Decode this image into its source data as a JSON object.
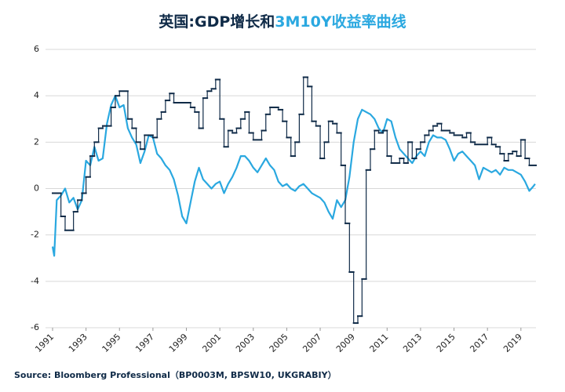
{
  "chart_data": {
    "type": "line",
    "title": [
      "英国:GDP增长和",
      "3M10Y收益率曲线"
    ],
    "source": "Source: Bloomberg Professional（BP0003M, BPSW10, UKGRABIY）",
    "xlim": [
      1991,
      2019.9
    ],
    "xticks": [
      1991,
      1993,
      1995,
      1997,
      1999,
      2001,
      2003,
      2005,
      2007,
      2009,
      2011,
      2013,
      2015,
      2017,
      2019
    ],
    "ylim": [
      -6,
      6
    ],
    "yticks": [
      -6,
      -4,
      -2,
      0,
      2,
      4,
      6
    ],
    "grid": true,
    "series": [
      {
        "color": "#0f2a47",
        "step": true,
        "x": [
          1991,
          1991.5,
          1991.75,
          1992.25,
          1992.5,
          1992.75,
          1993,
          1993.25,
          1993.5,
          1993.75,
          1994,
          1994.5,
          1994.75,
          1995,
          1995.5,
          1995.75,
          1996,
          1996.25,
          1996.5,
          1997,
          1997.25,
          1997.5,
          1997.75,
          1998,
          1998.25,
          1999.25,
          1999.5,
          1999.75,
          2000,
          2000.25,
          2000.5,
          2000.75,
          2001,
          2001.25,
          2001.5,
          2001.75,
          2002,
          2002.25,
          2002.5,
          2002.75,
          2003,
          2003.5,
          2003.75,
          2004,
          2004.5,
          2004.75,
          2005,
          2005.25,
          2005.5,
          2005.75,
          2006,
          2006.25,
          2006.5,
          2006.75,
          2007,
          2007.25,
          2007.5,
          2007.75,
          2008,
          2008.25,
          2008.5,
          2008.75,
          2009,
          2009.25,
          2009.5,
          2009.75,
          2010,
          2010.25,
          2010.5,
          2010.75,
          2011,
          2011.25,
          2011.75,
          2012,
          2012.25,
          2012.5,
          2012.75,
          2013,
          2013.25,
          2013.5,
          2013.75,
          2014,
          2014.25,
          2014.75,
          2015,
          2015.5,
          2015.75,
          2016,
          2016.25,
          2017,
          2017.25,
          2017.5,
          2017.75,
          2018,
          2018.25,
          2018.5,
          2018.75,
          2019,
          2019.25,
          2019.5
        ],
        "values": [
          -0.2,
          -1.2,
          -1.8,
          -1.0,
          -0.5,
          -0.2,
          0.5,
          1.4,
          2.0,
          2.6,
          2.7,
          3.5,
          4.0,
          4.2,
          3.0,
          2.6,
          2.0,
          1.7,
          2.3,
          2.2,
          3.0,
          3.3,
          3.8,
          4.1,
          3.7,
          3.5,
          3.3,
          2.6,
          3.9,
          4.2,
          4.3,
          4.7,
          3.0,
          1.8,
          2.5,
          2.4,
          2.6,
          3.0,
          3.3,
          2.4,
          2.1,
          2.5,
          3.2,
          3.5,
          3.4,
          2.9,
          2.2,
          1.4,
          2.0,
          3.2,
          4.8,
          4.4,
          2.9,
          2.7,
          1.3,
          2.0,
          2.9,
          2.8,
          2.4,
          1.0,
          -1.5,
          -3.6,
          -5.8,
          -5.5,
          -3.9,
          0.8,
          1.7,
          2.5,
          2.4,
          2.5,
          1.4,
          1.1,
          1.3,
          1.1,
          2.0,
          1.3,
          1.7,
          2.0,
          2.3,
          2.5,
          2.7,
          2.8,
          2.5,
          2.4,
          2.3,
          2.2,
          2.4,
          2.0,
          1.9,
          2.2,
          1.9,
          1.8,
          1.5,
          1.2,
          1.5,
          1.6,
          1.4,
          2.1,
          1.3,
          1.0
        ]
      },
      {
        "color": "#2aa8e0",
        "x": [
          1991,
          1991.1,
          1991.25,
          1991.5,
          1991.75,
          1992,
          1992.25,
          1992.5,
          1992.75,
          1993,
          1993.25,
          1993.5,
          1993.75,
          1994,
          1994.25,
          1994.5,
          1994.75,
          1995,
          1995.25,
          1995.5,
          1995.75,
          1996,
          1996.25,
          1996.5,
          1996.75,
          1997,
          1997.25,
          1997.5,
          1997.75,
          1998,
          1998.25,
          1998.5,
          1998.75,
          1999,
          1999.25,
          1999.5,
          1999.75,
          2000,
          2000.25,
          2000.5,
          2000.75,
          2001,
          2001.25,
          2001.5,
          2001.75,
          2002,
          2002.25,
          2002.5,
          2002.75,
          2003,
          2003.25,
          2003.5,
          2003.75,
          2004,
          2004.25,
          2004.5,
          2004.75,
          2005,
          2005.25,
          2005.5,
          2005.75,
          2006,
          2006.25,
          2006.5,
          2006.75,
          2007,
          2007.25,
          2007.5,
          2007.75,
          2008,
          2008.25,
          2008.5,
          2008.75,
          2009,
          2009.25,
          2009.5,
          2009.75,
          2010,
          2010.25,
          2010.5,
          2010.75,
          2011,
          2011.25,
          2011.5,
          2011.75,
          2012,
          2012.25,
          2012.5,
          2012.75,
          2013,
          2013.25,
          2013.5,
          2013.75,
          2014,
          2014.25,
          2014.5,
          2014.75,
          2015,
          2015.25,
          2015.5,
          2015.75,
          2016,
          2016.25,
          2016.5,
          2016.75,
          2017,
          2017.25,
          2017.5,
          2017.75,
          2018,
          2018.25,
          2018.5,
          2018.75,
          2019,
          2019.25,
          2019.5,
          2019.75,
          2019.85
        ],
        "values": [
          -2.5,
          -2.9,
          -0.5,
          -0.3,
          0.0,
          -0.6,
          -0.4,
          -0.9,
          -0.5,
          1.2,
          1.0,
          1.8,
          1.2,
          1.3,
          2.8,
          3.6,
          4.0,
          3.5,
          3.6,
          2.6,
          2.2,
          1.9,
          1.1,
          1.6,
          2.3,
          2.2,
          1.5,
          1.3,
          1.0,
          0.8,
          0.4,
          -0.3,
          -1.2,
          -1.5,
          -0.6,
          0.3,
          0.9,
          0.4,
          0.2,
          0.0,
          0.2,
          0.3,
          -0.2,
          0.2,
          0.5,
          0.9,
          1.4,
          1.4,
          1.2,
          0.9,
          0.7,
          1.0,
          1.3,
          1.0,
          0.8,
          0.3,
          0.1,
          0.2,
          0.0,
          -0.1,
          0.1,
          0.2,
          0.0,
          -0.2,
          -0.3,
          -0.4,
          -0.6,
          -1.0,
          -1.3,
          -0.5,
          -0.8,
          -0.5,
          0.5,
          2.0,
          3.0,
          3.4,
          3.3,
          3.2,
          3.0,
          2.6,
          2.4,
          3.0,
          2.9,
          2.2,
          1.7,
          1.5,
          1.3,
          1.1,
          1.4,
          1.6,
          1.4,
          2.0,
          2.3,
          2.2,
          2.2,
          2.1,
          1.7,
          1.2,
          1.5,
          1.6,
          1.4,
          1.2,
          1.0,
          0.4,
          0.9,
          0.8,
          0.7,
          0.8,
          0.6,
          0.9,
          0.8,
          0.8,
          0.7,
          0.6,
          0.3,
          -0.1,
          0.1,
          0.2
        ]
      }
    ]
  }
}
